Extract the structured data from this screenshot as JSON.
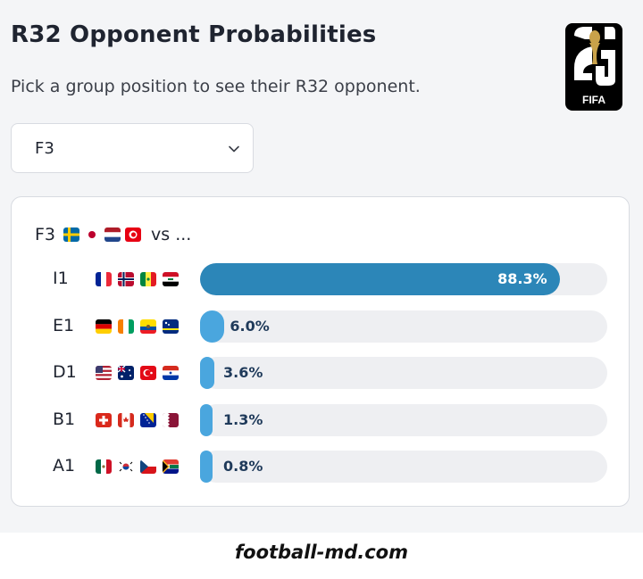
{
  "header": {
    "title": "R32 Opponent Probabilities",
    "subtitle": "Pick a group position to see their R32 opponent.",
    "logo_text": "FIFA",
    "logo_icon": "world-cup-26-logo"
  },
  "selector": {
    "selected": "F3",
    "icon": "chevron-down-icon"
  },
  "card": {
    "position": "F3",
    "vs_text": "vs ...",
    "flags": [
      "sweden",
      "japan",
      "netherlands",
      "tunisia"
    ]
  },
  "rows": [
    {
      "code": "I1",
      "pct": 88.3,
      "label": "88.3%",
      "flags": [
        "france",
        "norway",
        "senegal",
        "iraq"
      ]
    },
    {
      "code": "E1",
      "pct": 6.0,
      "label": "6.0%",
      "flags": [
        "germany",
        "ivory-coast",
        "ecuador",
        "curacao"
      ]
    },
    {
      "code": "D1",
      "pct": 3.6,
      "label": "3.6%",
      "flags": [
        "usa",
        "australia",
        "turkey",
        "paraguay"
      ]
    },
    {
      "code": "B1",
      "pct": 1.3,
      "label": "1.3%",
      "flags": [
        "switzerland",
        "canada",
        "bosnia",
        "qatar"
      ]
    },
    {
      "code": "A1",
      "pct": 0.8,
      "label": "0.8%",
      "flags": [
        "mexico",
        "south-korea",
        "czechia",
        "south-africa"
      ]
    }
  ],
  "colors": {
    "bar_primary": "#2c86b8",
    "bar_small": "#4aa6de",
    "track": "#eeeff2"
  },
  "footer": {
    "watermark": "football-md.com"
  }
}
